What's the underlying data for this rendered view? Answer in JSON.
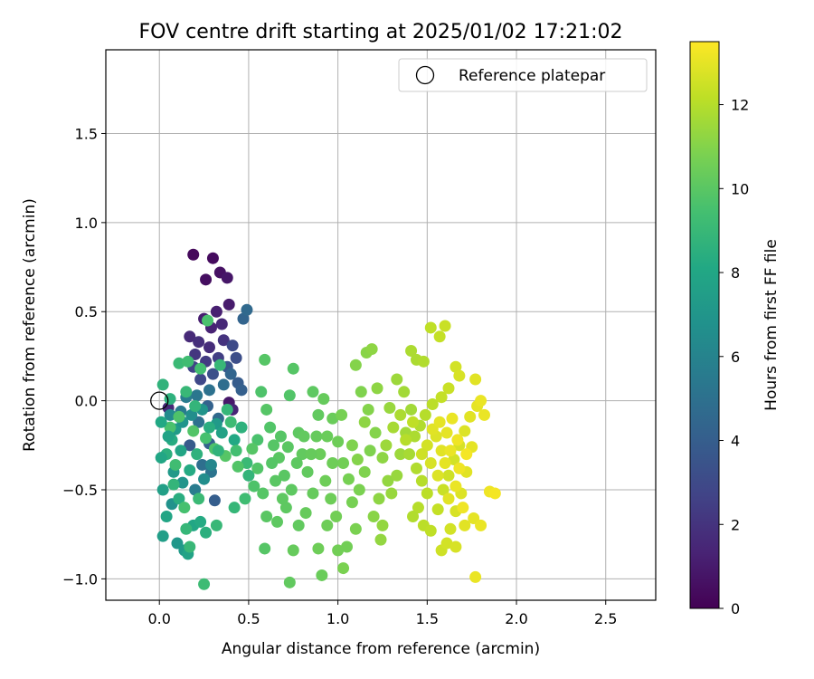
{
  "chart_data": {
    "type": "scatter",
    "title": "FOV centre drift starting at 2025/01/02 17:21:02",
    "xlabel": "Angular distance from reference (arcmin)",
    "ylabel": "Rotation from reference (arcmin)",
    "xlim": [
      -0.3,
      2.78
    ],
    "ylim": [
      -1.12,
      1.97
    ],
    "xticks": [
      0.0,
      0.5,
      1.0,
      1.5,
      2.0,
      2.5
    ],
    "xtick_labels": [
      "0.0",
      "0.5",
      "1.0",
      "1.5",
      "2.0",
      "2.5"
    ],
    "yticks": [
      -1.0,
      -0.5,
      0.0,
      0.5,
      1.0,
      1.5
    ],
    "ytick_labels": [
      "−1.0",
      "−0.5",
      "0.0",
      "0.5",
      "1.0",
      "1.5"
    ],
    "grid": true,
    "legend": {
      "placement": "top-right",
      "entries": [
        "Reference platepar"
      ]
    },
    "reference_point": {
      "label": "Reference platepar",
      "x": 0.0,
      "y": 0.0,
      "marker": "open-circle"
    },
    "colorbar": {
      "label": "Hours from first FF file",
      "range": [
        0,
        13.5
      ],
      "ticks": [
        0,
        2,
        4,
        6,
        8,
        10,
        12
      ],
      "tick_labels": [
        "0",
        "2",
        "4",
        "6",
        "8",
        "10",
        "12"
      ],
      "colormap": "viridis"
    },
    "points": [
      [
        0.19,
        0.82,
        0.3
      ],
      [
        0.3,
        0.8,
        0.4
      ],
      [
        0.34,
        0.72,
        0.6
      ],
      [
        0.26,
        0.68,
        0.5
      ],
      [
        0.38,
        0.69,
        0.8
      ],
      [
        0.39,
        0.54,
        1.0
      ],
      [
        0.32,
        0.5,
        1.2
      ],
      [
        0.25,
        0.46,
        1.1
      ],
      [
        0.29,
        0.41,
        1.3
      ],
      [
        0.35,
        0.43,
        1.5
      ],
      [
        0.17,
        0.36,
        1.6
      ],
      [
        0.22,
        0.33,
        1.8
      ],
      [
        0.28,
        0.3,
        1.7
      ],
      [
        0.36,
        0.34,
        2.0
      ],
      [
        0.2,
        0.26,
        2.1
      ],
      [
        0.26,
        0.22,
        2.3
      ],
      [
        0.33,
        0.24,
        2.5
      ],
      [
        0.41,
        0.31,
        3.0
      ],
      [
        0.43,
        0.24,
        3.2
      ],
      [
        0.19,
        0.19,
        2.7
      ],
      [
        0.23,
        0.12,
        2.9
      ],
      [
        0.3,
        0.15,
        3.3
      ],
      [
        0.38,
        0.19,
        3.6
      ],
      [
        0.47,
        0.46,
        4.3
      ],
      [
        0.49,
        0.51,
        4.6
      ],
      [
        0.44,
        0.1,
        3.9
      ],
      [
        0.46,
        0.06,
        4.1
      ],
      [
        0.4,
        0.15,
        4.4
      ],
      [
        0.36,
        0.09,
        4.8
      ],
      [
        0.28,
        0.06,
        5.0
      ],
      [
        0.21,
        0.03,
        5.3
      ],
      [
        0.15,
        0.02,
        5.6
      ],
      [
        0.05,
        -0.04,
        1.5
      ],
      [
        0.39,
        -0.01,
        0.9
      ],
      [
        0.41,
        -0.05,
        1.4
      ],
      [
        0.27,
        -0.03,
        4.2
      ],
      [
        0.33,
        -0.1,
        4.6
      ],
      [
        0.22,
        -0.12,
        5.0
      ],
      [
        0.12,
        -0.06,
        5.5
      ],
      [
        0.06,
        -0.08,
        6.4
      ],
      [
        0.17,
        -0.25,
        3.8
      ],
      [
        0.28,
        -0.24,
        4.2
      ],
      [
        0.24,
        -0.36,
        4.9
      ],
      [
        0.29,
        -0.4,
        5.2
      ],
      [
        0.2,
        -0.5,
        5.6
      ],
      [
        0.31,
        -0.56,
        4.0
      ],
      [
        0.29,
        -0.36,
        6.2
      ],
      [
        0.25,
        -0.44,
        6.6
      ],
      [
        0.13,
        -0.46,
        6.9
      ],
      [
        0.08,
        -0.4,
        7.2
      ],
      [
        0.02,
        -0.5,
        7.6
      ],
      [
        0.04,
        -0.65,
        7.9
      ],
      [
        0.07,
        -0.58,
        6.8
      ],
      [
        0.1,
        -0.8,
        7.1
      ],
      [
        0.02,
        -0.76,
        7.5
      ],
      [
        0.14,
        -0.84,
        7.3
      ],
      [
        0.16,
        -0.86,
        7.8
      ],
      [
        0.19,
        -0.7,
        8.0
      ],
      [
        0.23,
        -0.68,
        8.2
      ],
      [
        0.11,
        -0.55,
        8.4
      ],
      [
        0.04,
        -0.3,
        8.5
      ],
      [
        0.07,
        -0.22,
        8.3
      ],
      [
        0.01,
        -0.32,
        8.0
      ],
      [
        0.09,
        -0.16,
        7.4
      ],
      [
        0.13,
        -0.12,
        7.0
      ],
      [
        0.18,
        -0.08,
        6.6
      ],
      [
        0.24,
        -0.05,
        6.9
      ],
      [
        0.32,
        -0.13,
        7.3
      ],
      [
        0.35,
        -0.18,
        7.7
      ],
      [
        0.42,
        -0.22,
        8.1
      ],
      [
        0.46,
        -0.15,
        8.6
      ],
      [
        0.2,
        -0.03,
        8.8
      ],
      [
        0.15,
        0.05,
        9.0
      ],
      [
        0.02,
        0.09,
        8.7
      ],
      [
        0.06,
        0.01,
        8.6
      ],
      [
        0.11,
        0.21,
        9.1
      ],
      [
        0.16,
        0.22,
        9.3
      ],
      [
        0.23,
        0.18,
        9.4
      ],
      [
        0.27,
        0.45,
        9.6
      ],
      [
        0.34,
        0.2,
        9.0
      ],
      [
        0.38,
        -0.05,
        8.9
      ],
      [
        0.4,
        -0.12,
        9.2
      ],
      [
        0.43,
        -0.28,
        9.4
      ],
      [
        0.49,
        -0.35,
        9.1
      ],
      [
        0.5,
        -0.42,
        8.8
      ],
      [
        0.48,
        -0.55,
        9.3
      ],
      [
        0.42,
        -0.6,
        8.9
      ],
      [
        0.32,
        -0.7,
        9.0
      ],
      [
        0.26,
        -0.74,
        8.5
      ],
      [
        0.25,
        -1.03,
        9.2
      ],
      [
        0.17,
        -0.82,
        9.0
      ],
      [
        0.14,
        -0.6,
        9.5
      ],
      [
        0.09,
        -0.36,
        9.3
      ],
      [
        0.06,
        -0.15,
        9.6
      ],
      [
        0.11,
        -0.09,
        9.7
      ],
      [
        0.19,
        -0.17,
        9.8
      ],
      [
        0.26,
        -0.21,
        9.5
      ],
      [
        0.31,
        -0.27,
        9.7
      ],
      [
        0.37,
        -0.31,
        9.9
      ],
      [
        0.44,
        -0.37,
        9.8
      ],
      [
        0.22,
        -0.55,
        9.1
      ],
      [
        0.05,
        -0.2,
        7.8
      ],
      [
        0.12,
        -0.28,
        7.9
      ],
      [
        0.17,
        -0.39,
        8.2
      ],
      [
        0.21,
        -0.3,
        8.6
      ],
      [
        0.28,
        -0.15,
        8.4
      ],
      [
        0.33,
        -0.28,
        8.7
      ],
      [
        0.01,
        -0.12,
        8.1
      ],
      [
        0.08,
        -0.47,
        8.8
      ],
      [
        0.15,
        -0.72,
        8.9
      ],
      [
        0.59,
        0.23,
        9.9
      ],
      [
        0.57,
        0.05,
        9.7
      ],
      [
        0.6,
        -0.05,
        9.9
      ],
      [
        0.62,
        -0.15,
        9.8
      ],
      [
        0.55,
        -0.22,
        9.6
      ],
      [
        0.52,
        -0.27,
        9.9
      ],
      [
        0.64,
        -0.25,
        9.9
      ],
      [
        0.67,
        -0.32,
        10.0
      ],
      [
        0.7,
        -0.42,
        10.0
      ],
      [
        0.74,
        -0.5,
        10.1
      ],
      [
        0.71,
        -0.6,
        10.1
      ],
      [
        0.66,
        -0.68,
        10.1
      ],
      [
        0.6,
        -0.65,
        10.0
      ],
      [
        0.58,
        -0.52,
        9.9
      ],
      [
        0.55,
        -0.38,
        9.8
      ],
      [
        0.59,
        -0.83,
        9.9
      ],
      [
        0.73,
        0.03,
        9.8
      ],
      [
        0.75,
        0.18,
        9.9
      ],
      [
        0.78,
        -0.18,
        10.1
      ],
      [
        0.8,
        -0.3,
        10.2
      ],
      [
        0.83,
        -0.4,
        10.2
      ],
      [
        0.86,
        -0.52,
        10.3
      ],
      [
        0.82,
        -0.63,
        10.3
      ],
      [
        0.78,
        -0.7,
        10.2
      ],
      [
        0.75,
        -0.84,
        10.3
      ],
      [
        0.73,
        -1.02,
        10.2
      ],
      [
        0.88,
        -0.2,
        10.3
      ],
      [
        0.9,
        -0.3,
        10.4
      ],
      [
        0.93,
        -0.45,
        10.5
      ],
      [
        0.96,
        -0.55,
        10.5
      ],
      [
        0.99,
        -0.65,
        10.6
      ],
      [
        0.94,
        -0.7,
        10.5
      ],
      [
        0.89,
        -0.83,
        10.5
      ],
      [
        0.91,
        -0.98,
        10.4
      ],
      [
        0.89,
        -0.08,
        10.2
      ],
      [
        0.86,
        0.05,
        10.1
      ],
      [
        0.92,
        0.01,
        10.3
      ],
      [
        0.97,
        -0.1,
        10.4
      ],
      [
        1.0,
        -0.23,
        10.5
      ],
      [
        1.03,
        -0.35,
        10.6
      ],
      [
        1.06,
        -0.44,
        10.7
      ],
      [
        1.08,
        -0.57,
        10.7
      ],
      [
        1.1,
        -0.72,
        10.8
      ],
      [
        1.05,
        -0.82,
        10.6
      ],
      [
        1.0,
        -0.84,
        10.6
      ],
      [
        1.03,
        -0.94,
        10.8
      ],
      [
        1.12,
        -0.5,
        10.8
      ],
      [
        1.15,
        -0.4,
        10.9
      ],
      [
        1.18,
        -0.28,
        10.9
      ],
      [
        1.21,
        -0.18,
        11.0
      ],
      [
        1.17,
        -0.05,
        11.0
      ],
      [
        1.13,
        0.05,
        10.9
      ],
      [
        1.1,
        0.2,
        11.0
      ],
      [
        1.16,
        0.27,
        11.1
      ],
      [
        1.19,
        0.29,
        11.2
      ],
      [
        1.25,
        -0.32,
        11.2
      ],
      [
        1.28,
        -0.45,
        11.3
      ],
      [
        1.23,
        -0.55,
        11.2
      ],
      [
        1.2,
        -0.65,
        11.1
      ],
      [
        1.25,
        -0.7,
        11.3
      ],
      [
        1.24,
        -0.78,
        11.3
      ],
      [
        1.3,
        -0.52,
        11.4
      ],
      [
        1.33,
        -0.42,
        11.4
      ],
      [
        1.35,
        -0.3,
        11.5
      ],
      [
        1.38,
        -0.18,
        11.6
      ],
      [
        1.41,
        -0.05,
        11.6
      ],
      [
        1.37,
        0.05,
        11.6
      ],
      [
        1.33,
        0.12,
        11.5
      ],
      [
        1.29,
        -0.04,
        11.4
      ],
      [
        1.22,
        0.07,
        11.2
      ],
      [
        1.41,
        0.28,
        11.8
      ],
      [
        1.44,
        0.23,
        11.8
      ],
      [
        1.48,
        0.22,
        11.9
      ],
      [
        1.52,
        0.41,
        12.2
      ],
      [
        1.57,
        0.36,
        12.3
      ],
      [
        1.6,
        0.42,
        12.4
      ],
      [
        1.66,
        0.19,
        12.6
      ],
      [
        1.68,
        0.14,
        12.7
      ],
      [
        1.77,
        0.12,
        12.9
      ],
      [
        1.62,
        0.07,
        12.4
      ],
      [
        1.58,
        0.02,
        12.3
      ],
      [
        1.53,
        -0.02,
        12.1
      ],
      [
        1.49,
        -0.08,
        12.0
      ],
      [
        1.46,
        -0.14,
        11.9
      ],
      [
        1.43,
        -0.2,
        11.8
      ],
      [
        1.4,
        -0.3,
        11.7
      ],
      [
        1.44,
        -0.38,
        11.9
      ],
      [
        1.47,
        -0.45,
        12.0
      ],
      [
        1.5,
        -0.52,
        12.1
      ],
      [
        1.45,
        -0.6,
        12.0
      ],
      [
        1.42,
        -0.65,
        11.9
      ],
      [
        1.48,
        -0.7,
        12.1
      ],
      [
        1.52,
        -0.73,
        12.2
      ],
      [
        1.56,
        -0.61,
        12.3
      ],
      [
        1.59,
        -0.5,
        12.4
      ],
      [
        1.62,
        -0.42,
        12.5
      ],
      [
        1.65,
        -0.33,
        12.6
      ],
      [
        1.68,
        -0.25,
        12.7
      ],
      [
        1.71,
        -0.17,
        12.8
      ],
      [
        1.74,
        -0.09,
        12.9
      ],
      [
        1.78,
        -0.03,
        13.0
      ],
      [
        1.8,
        0.0,
        13.1
      ],
      [
        1.82,
        -0.08,
        13.1
      ],
      [
        1.75,
        -0.26,
        13.0
      ],
      [
        1.72,
        -0.4,
        12.9
      ],
      [
        1.69,
        -0.52,
        12.8
      ],
      [
        1.66,
        -0.62,
        12.7
      ],
      [
        1.63,
        -0.72,
        12.6
      ],
      [
        1.58,
        -0.84,
        12.5
      ],
      [
        1.61,
        -0.8,
        12.6
      ],
      [
        1.66,
        -0.82,
        12.7
      ],
      [
        1.71,
        -0.7,
        12.9
      ],
      [
        1.76,
        -0.66,
        13.0
      ],
      [
        1.8,
        -0.7,
        13.1
      ],
      [
        1.85,
        -0.51,
        13.2
      ],
      [
        1.88,
        -0.52,
        13.3
      ],
      [
        1.77,
        -0.99,
        13.1
      ],
      [
        1.55,
        -0.2,
        12.8
      ],
      [
        1.58,
        -0.28,
        12.9
      ],
      [
        1.61,
        -0.18,
        13.0
      ],
      [
        1.64,
        -0.1,
        13.1
      ],
      [
        1.67,
        -0.22,
        13.2
      ],
      [
        1.52,
        -0.35,
        12.7
      ],
      [
        1.56,
        -0.42,
        12.8
      ],
      [
        1.6,
        -0.35,
        13.0
      ],
      [
        1.63,
        -0.28,
        13.1
      ],
      [
        1.68,
        -0.38,
        13.2
      ],
      [
        1.72,
        -0.3,
        13.3
      ],
      [
        1.5,
        -0.25,
        12.6
      ],
      [
        1.47,
        -0.3,
        12.5
      ],
      [
        1.53,
        -0.16,
        12.9
      ],
      [
        1.57,
        -0.12,
        13.0
      ],
      [
        1.62,
        -0.55,
        12.9
      ],
      [
        1.66,
        -0.48,
        13.1
      ],
      [
        1.7,
        -0.6,
        13.2
      ],
      [
        1.42,
        -0.12,
        12.2
      ],
      [
        1.38,
        -0.22,
        12.0
      ],
      [
        1.35,
        -0.08,
        11.8
      ],
      [
        1.31,
        -0.15,
        11.7
      ],
      [
        1.27,
        -0.25,
        11.5
      ],
      [
        1.15,
        -0.12,
        11.2
      ],
      [
        1.11,
        -0.33,
        11.0
      ],
      [
        1.08,
        -0.25,
        10.9
      ],
      [
        1.02,
        -0.08,
        10.7
      ],
      [
        0.97,
        -0.35,
        10.5
      ],
      [
        0.94,
        -0.2,
        10.4
      ],
      [
        0.85,
        -0.3,
        10.3
      ],
      [
        0.81,
        -0.2,
        10.2
      ],
      [
        0.77,
        -0.35,
        10.1
      ],
      [
        0.72,
        -0.26,
        10.0
      ],
      [
        0.68,
        -0.2,
        9.9
      ],
      [
        0.65,
        -0.45,
        10.0
      ],
      [
        0.69,
        -0.55,
        10.1
      ],
      [
        0.63,
        -0.35,
        9.9
      ],
      [
        0.53,
        -0.48,
        9.7
      ]
    ]
  }
}
